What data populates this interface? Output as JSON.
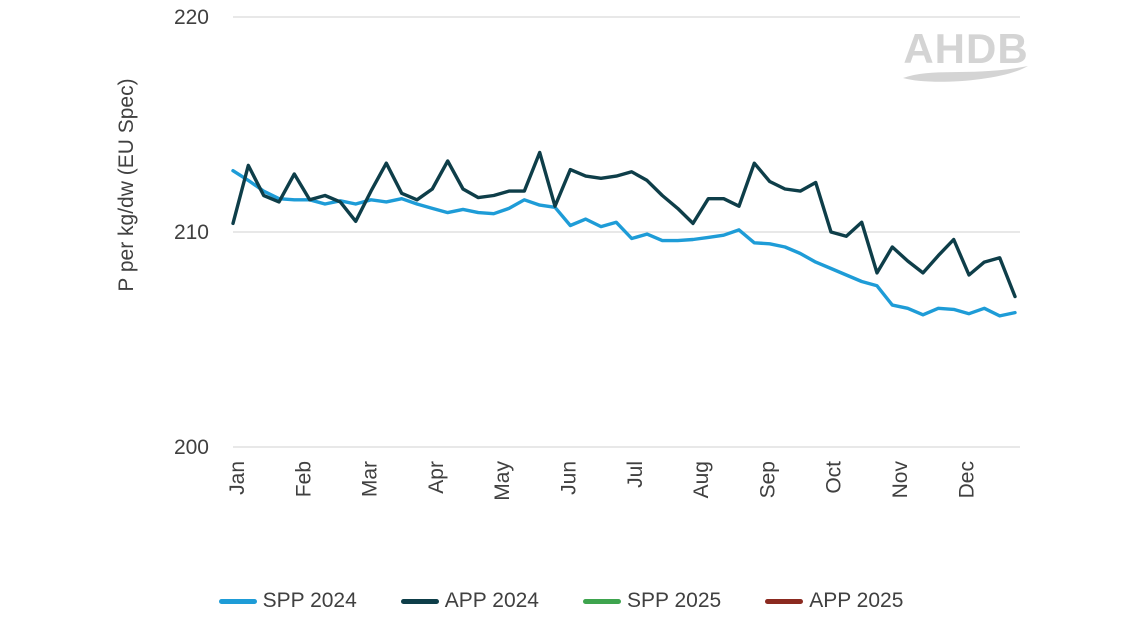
{
  "watermark": {
    "text": "AHDB"
  },
  "colors": {
    "text": "#404040",
    "grid": "#d9d9d9",
    "watermark": "#d4d4d4",
    "background": "#ffffff"
  },
  "chart_data": {
    "type": "line",
    "title": "",
    "xlabel": "",
    "ylabel": "P per kg/dw (EU Spec)",
    "ylim": [
      200,
      220
    ],
    "yticks": [
      220,
      210,
      200
    ],
    "x_categories": [
      "Jan",
      "Feb",
      "Mar",
      "Apr",
      "May",
      "Jun",
      "Jul",
      "Aug",
      "Sep",
      "Oct",
      "Nov",
      "Dec"
    ],
    "x_resolution": "weekly (52 points per year series)",
    "grid": "horizontal",
    "legend_position": "bottom",
    "series": [
      {
        "name": "SPP 2024",
        "color": "#1e9cd7",
        "values": [
          212.85,
          212.4,
          211.9,
          211.55,
          211.5,
          211.5,
          211.3,
          211.45,
          211.3,
          211.5,
          211.4,
          211.55,
          211.3,
          211.1,
          210.9,
          211.05,
          210.9,
          210.85,
          211.1,
          211.5,
          211.25,
          211.15,
          210.3,
          210.6,
          210.25,
          210.45,
          209.7,
          209.9,
          209.6,
          209.6,
          209.65,
          209.75,
          209.85,
          210.1,
          209.5,
          209.45,
          209.3,
          209.0,
          208.6,
          208.3,
          208.0,
          207.7,
          207.5,
          206.6,
          206.45,
          206.15,
          206.45,
          206.4,
          206.2,
          206.45,
          206.1,
          206.25
        ]
      },
      {
        "name": "APP 2024",
        "color": "#0e3e49",
        "values": [
          210.4,
          213.1,
          211.7,
          211.4,
          212.7,
          211.5,
          211.7,
          211.4,
          210.5,
          211.9,
          213.2,
          211.8,
          211.5,
          212.0,
          213.3,
          212.0,
          211.6,
          211.7,
          211.9,
          211.9,
          213.7,
          211.2,
          212.9,
          212.6,
          212.5,
          212.6,
          212.8,
          212.4,
          211.7,
          211.1,
          210.4,
          211.55,
          211.55,
          211.2,
          213.2,
          212.35,
          212.0,
          211.9,
          212.3,
          210.0,
          209.8,
          210.45,
          208.1,
          209.3,
          208.65,
          208.1,
          208.9,
          209.65,
          208.0,
          208.6,
          208.8,
          207.0
        ]
      },
      {
        "name": "SPP 2025",
        "color": "#3ea44e",
        "values": []
      },
      {
        "name": "APP 2025",
        "color": "#8b2a20",
        "values": []
      }
    ]
  }
}
